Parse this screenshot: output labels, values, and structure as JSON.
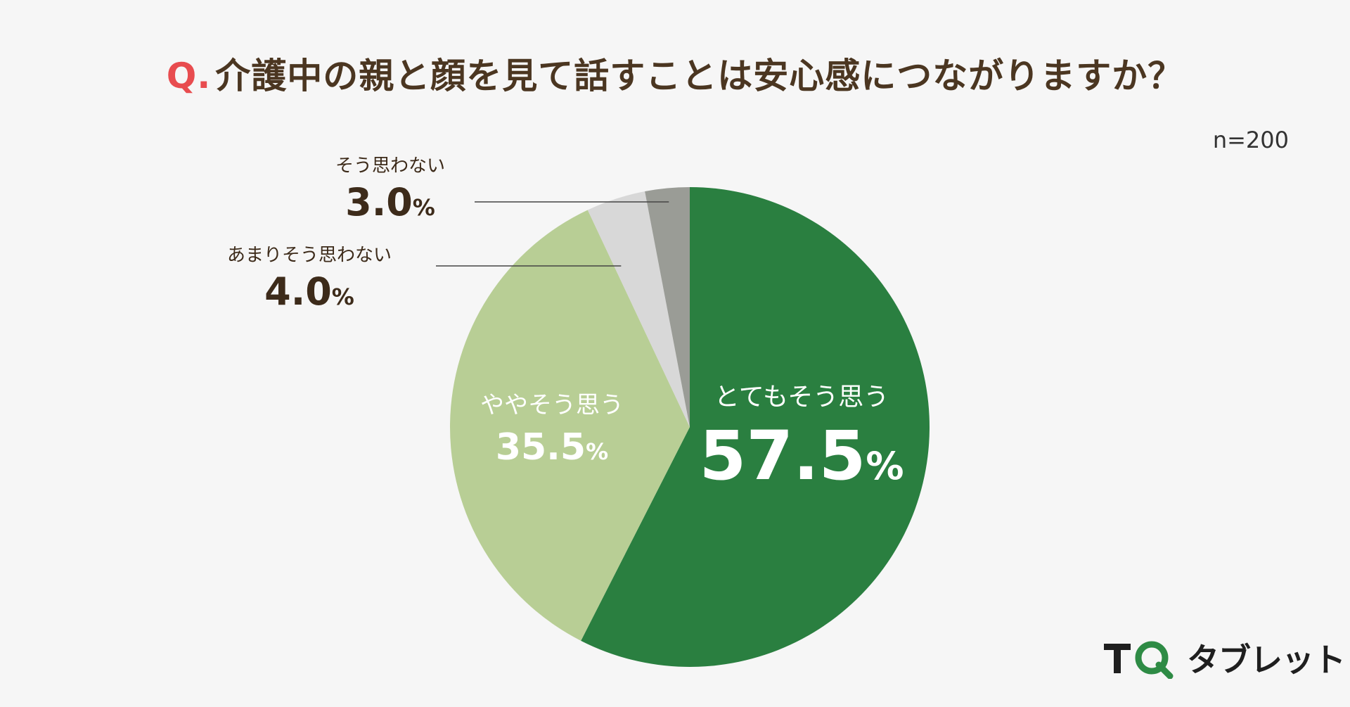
{
  "title": {
    "prefix": "Q.",
    "text": "介護中の親と顔を見て話すことは安心感につながりますか？"
  },
  "sample_size": "n=200",
  "brand": {
    "name": "タブレット",
    "mark": "TQ",
    "accent_color": "#2e8b45"
  },
  "colors": {
    "title_prefix": "#e84c4f",
    "title": "#4b3621"
  },
  "chart_data": {
    "type": "pie",
    "unit": "%",
    "slices": [
      {
        "label": "とてもそう思う",
        "value": 57.5,
        "value_text": "57.5",
        "color": "#2a7f40"
      },
      {
        "label": "ややそう思う",
        "value": 35.5,
        "value_text": "35.5",
        "color": "#b8ce95"
      },
      {
        "label": "あまりそう思わない",
        "value": 4.0,
        "value_text": "4.0",
        "color": "#d8d8d8"
      },
      {
        "label": "そう思わない",
        "value": 3.0,
        "value_text": "3.0",
        "color": "#9a9c96"
      }
    ],
    "start": "12 o'clock",
    "direction": "clockwise"
  }
}
